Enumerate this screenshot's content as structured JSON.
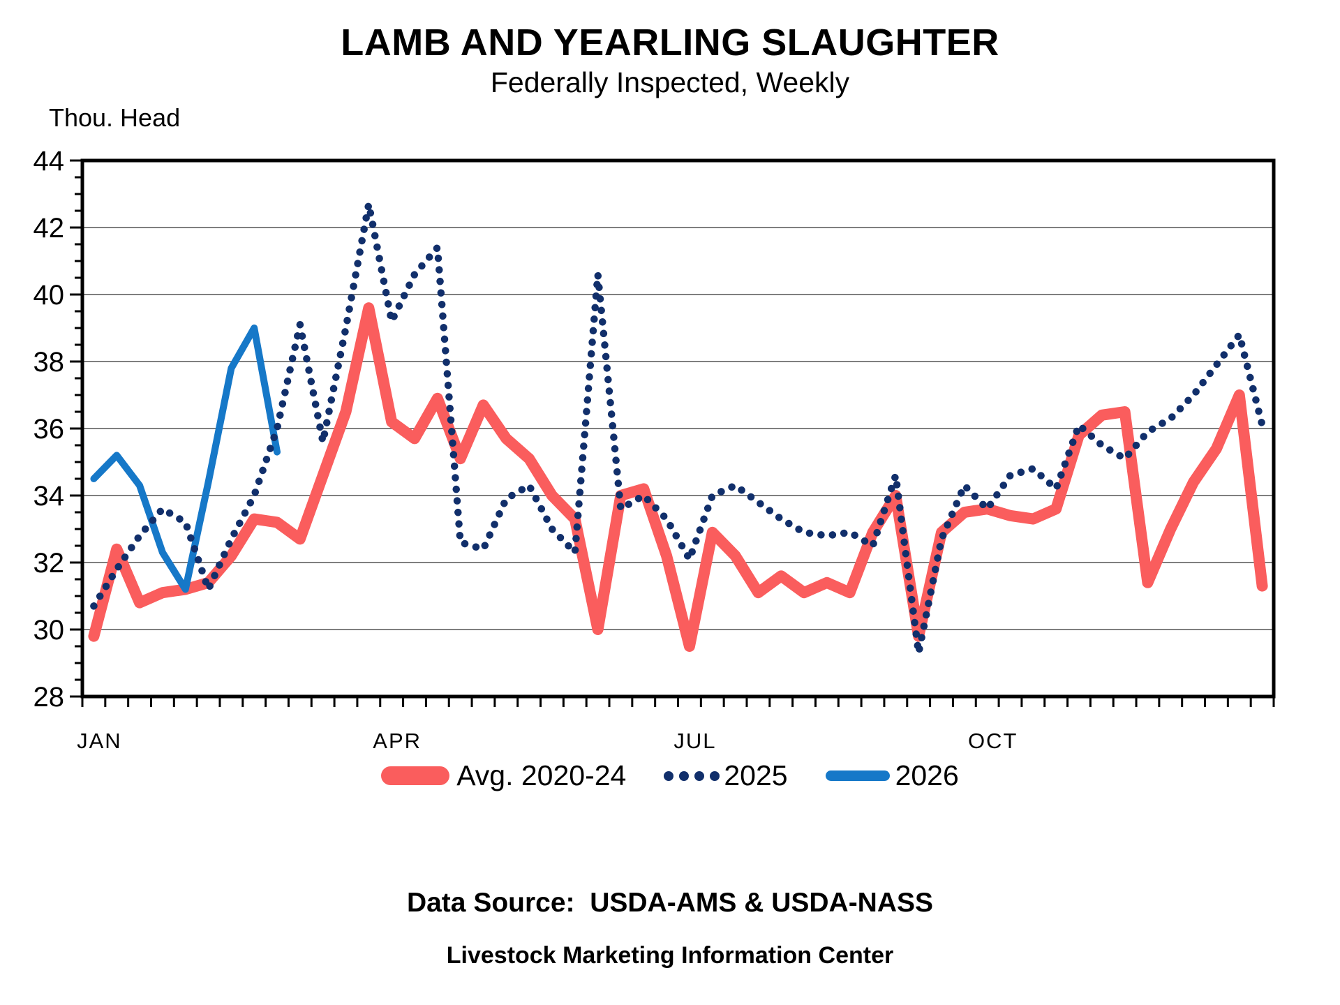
{
  "page": {
    "title": "LAMB AND YEARLING SLAUGHTER",
    "subtitle": "Federally Inspected, Weekly",
    "y_axis_unit": "Thou. Head",
    "footer_line1": "Data Source:  USDA-AMS & USDA-NASS",
    "footer_line2": "Livestock Marketing Information Center"
  },
  "colors": {
    "avg_red": "#FA5D5D",
    "navy_2025": "#112F6B",
    "blue_2026": "#1678C8",
    "gridline": "#7F7F7F",
    "axis": "#000000",
    "text": "#000000"
  },
  "chart_data": {
    "type": "line",
    "title": "LAMB AND YEARLING SLAUGHTER",
    "subtitle": "Federally Inspected, Weekly",
    "ylabel": "Thou. Head",
    "xlabel": "",
    "ylim": [
      28,
      44
    ],
    "ytick_step": 2,
    "ytick_minor_step": 0.5,
    "grid": "horizontal at even values 30-42",
    "x_unit": "week of year, 52 weekly points",
    "x_tick_labels": [
      {
        "label": "JAN",
        "week": 1
      },
      {
        "label": "APR",
        "week": 14
      },
      {
        "label": "JUL",
        "week": 27
      },
      {
        "label": "OCT",
        "week": 40
      }
    ],
    "legend_position": "bottom-center",
    "series": [
      {
        "name": "Avg. 2020-24",
        "style": "solid-thick",
        "color": "#FA5D5D",
        "start_week": 1,
        "values": [
          29.8,
          32.4,
          30.8,
          31.1,
          31.2,
          31.4,
          32.2,
          33.3,
          33.2,
          32.7,
          34.6,
          36.5,
          39.6,
          36.2,
          35.7,
          36.9,
          35.1,
          36.7,
          35.7,
          35.1,
          34.0,
          33.3,
          30.0,
          34.0,
          34.2,
          32.2,
          29.5,
          32.9,
          32.2,
          31.1,
          31.6,
          31.1,
          31.4,
          31.1,
          32.9,
          34.0,
          29.8,
          32.9,
          33.5,
          33.6,
          33.4,
          33.3,
          33.6,
          35.8,
          36.4,
          36.5,
          31.4,
          33.0,
          34.4,
          35.4,
          37.0,
          31.3
        ]
      },
      {
        "name": "2025",
        "style": "dotted",
        "color": "#112F6B",
        "start_week": 1,
        "values": [
          30.7,
          31.8,
          32.8,
          33.6,
          33.2,
          31.2,
          32.7,
          34.0,
          36.0,
          39.1,
          35.6,
          39.0,
          42.7,
          39.2,
          40.6,
          41.4,
          32.6,
          32.4,
          33.9,
          34.3,
          33.0,
          32.3,
          40.6,
          33.6,
          34.0,
          33.3,
          32.1,
          34.0,
          34.3,
          33.8,
          33.3,
          32.9,
          32.8,
          32.9,
          32.5,
          34.6,
          29.3,
          32.7,
          34.3,
          33.6,
          34.6,
          34.8,
          34.2,
          36.1,
          35.5,
          35.1,
          35.9,
          36.3,
          37.0,
          37.9,
          38.8,
          36.1
        ]
      },
      {
        "name": "2026",
        "style": "solid",
        "color": "#1678C8",
        "start_week": 1,
        "values": [
          34.5,
          35.2,
          34.3,
          32.3,
          31.2,
          34.4,
          37.8,
          39.0,
          35.3
        ]
      }
    ]
  }
}
